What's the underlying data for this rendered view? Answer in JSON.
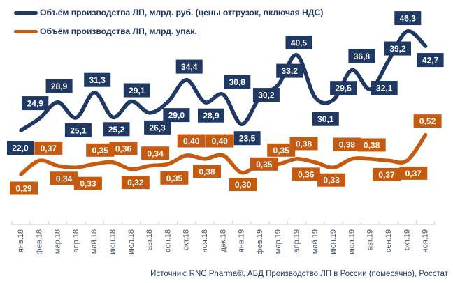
{
  "legend": {
    "items": [
      {
        "label": "Объём производства ЛП, млрд. руб. (цены отгрузок, включая НДС)",
        "color": "#1F3864"
      },
      {
        "label": "Объём производства ЛП, млрд. упак.",
        "color": "#C55A11"
      }
    ]
  },
  "footer": {
    "source": "Источник: RNC Pharma®, АБД Производство ЛП в России (помесячно), Росстат"
  },
  "chart_data": {
    "type": "line",
    "smooth": true,
    "title": "",
    "legend_position": "top-left",
    "grid": false,
    "y_axis_visible": false,
    "categories": [
      "янв.18",
      "фев.18",
      "мар.18",
      "апр.18",
      "май.18",
      "июн.18",
      "июл.18",
      "авг.18",
      "сен.18",
      "окт.18",
      "ноя.18",
      "дек.18",
      "янв.19",
      "фев.19",
      "мар.19",
      "апр.19",
      "май.19",
      "июн.19",
      "июл.19",
      "авг.19",
      "сен.19",
      "окт.19",
      "ноя.19"
    ],
    "x_axis": {
      "label_color": "#44546A",
      "line_color": "#C9C9C9",
      "tick_color": "#C9C9C9"
    },
    "series": [
      {
        "name": "Объём производства ЛП, млрд. руб. (цены отгрузок, включая НДС)",
        "unit": "млрд. руб.",
        "color": "#1F3864",
        "decimals": 1,
        "values": [
          22.0,
          24.9,
          28.9,
          25.1,
          31.3,
          25.2,
          29.1,
          26.3,
          29.0,
          34.4,
          28.9,
          30.8,
          23.5,
          30.2,
          33.2,
          40.5,
          30.1,
          29.5,
          36.8,
          32.1,
          39.2,
          46.3,
          42.7
        ],
        "label_offsets": [
          [
            -1,
            25
          ],
          [
            -6,
            -22
          ],
          [
            2,
            -23
          ],
          [
            3,
            18
          ],
          [
            4,
            -18
          ],
          [
            5,
            17
          ],
          [
            8,
            -16
          ],
          [
            11,
            21
          ],
          [
            12,
            19
          ],
          [
            4,
            -19
          ],
          [
            9,
            19
          ],
          [
            20,
            -18
          ],
          [
            8,
            20
          ],
          [
            9,
            -3
          ],
          [
            16,
            -20
          ],
          [
            3,
            -18
          ],
          [
            15,
            31
          ],
          [
            14,
            -17
          ],
          [
            14,
            -20
          ],
          [
            20,
            -2
          ],
          [
            13,
            -17
          ],
          [
            1,
            -19
          ],
          [
            7,
            20
          ]
        ]
      },
      {
        "name": "Объём производства ЛП, млрд. упак.",
        "unit": "млрд. упак.",
        "color": "#C55A11",
        "decimals": 2,
        "values": [
          0.29,
          0.37,
          0.34,
          0.33,
          0.35,
          0.36,
          0.32,
          0.34,
          0.35,
          0.4,
          0.38,
          0.4,
          0.3,
          0.35,
          0.35,
          0.38,
          0.36,
          0.33,
          0.38,
          0.38,
          0.37,
          0.37,
          0.52
        ],
        "label_offsets": [
          [
            4,
            20
          ],
          [
            13,
            -18
          ],
          [
            9,
            18
          ],
          [
            17,
            23
          ],
          [
            8,
            -20
          ],
          [
            15,
            -20
          ],
          [
            6,
            19
          ],
          [
            8,
            -18
          ],
          [
            9,
            20
          ],
          [
            7,
            -21
          ],
          [
            3,
            18
          ],
          [
            -5,
            -21
          ],
          [
            2,
            17
          ],
          [
            6,
            0
          ],
          [
            4,
            -20
          ],
          [
            10,
            -22
          ],
          [
            -13,
            17
          ],
          [
            -3,
            18
          ],
          [
            -7,
            -21
          ],
          [
            2,
            -20
          ],
          [
            -3,
            20
          ],
          [
            9,
            18
          ],
          [
            3,
            -20
          ]
        ]
      }
    ]
  }
}
